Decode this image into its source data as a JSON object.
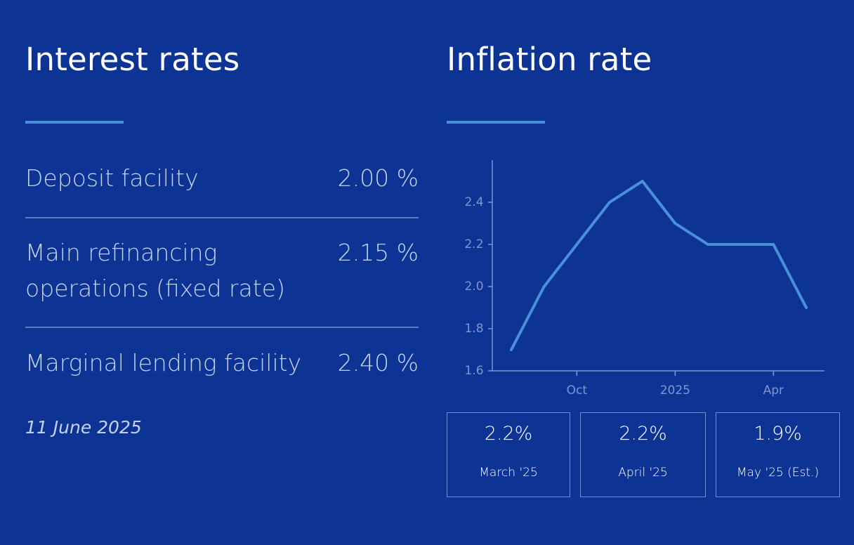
{
  "interest": {
    "title": "Interest rates",
    "rows": [
      {
        "label": "Deposit facility",
        "value": "2.00 %"
      },
      {
        "label": "Main refinancing operations (fixed rate)",
        "value": "2.15 %"
      },
      {
        "label": "Marginal lending facility",
        "value": "2.40 %"
      }
    ],
    "date": "11 June 2025"
  },
  "inflation": {
    "title": "Inflation rate",
    "stats": [
      {
        "value": "2.2%",
        "label": "March '25"
      },
      {
        "value": "2.2%",
        "label": "April '25"
      },
      {
        "value": "1.9%",
        "label": "May '25 (Est.)"
      }
    ]
  },
  "colors": {
    "background": "#0d3494",
    "accent": "#4a8fd9",
    "line": "#4a8fd9",
    "muted_text": "#c3d3ee",
    "axis": "#7d97cf"
  },
  "chart_data": {
    "type": "line",
    "x": [
      "2024-08",
      "2024-09",
      "2024-10",
      "2024-11",
      "2024-12",
      "2025-01",
      "2025-02",
      "2025-03",
      "2025-04",
      "2025-05"
    ],
    "series": [
      {
        "values": [
          1.7,
          2.0,
          2.2,
          2.4,
          2.5,
          2.3,
          2.2,
          2.2,
          2.2,
          1.9
        ]
      }
    ],
    "ylim": [
      1.6,
      2.6
    ],
    "yticks": [
      "1.6",
      "1.8",
      "2.0",
      "2.2",
      "2.4"
    ],
    "yticks_values": [
      1.6,
      1.8,
      2.0,
      2.2,
      2.4
    ],
    "xticks": [
      "Oct",
      "2025",
      "Apr"
    ],
    "xticks_values": [
      "2024-10",
      "2025-01",
      "2025-04"
    ],
    "xlabel": "",
    "ylabel": "",
    "grid": false
  }
}
